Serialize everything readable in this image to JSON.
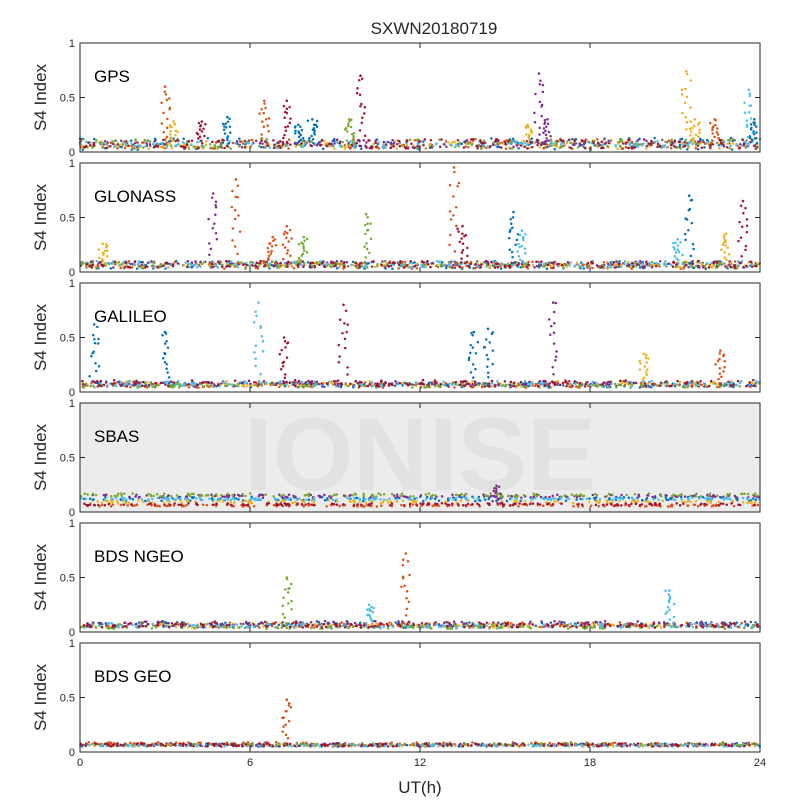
{
  "chart_data": {
    "type": "scatter",
    "title": "SXWN20180719",
    "xlabel": "UT(h)",
    "ylabel": "S4 Index",
    "xlim": [
      0,
      24
    ],
    "ylim": [
      0,
      1
    ],
    "x_ticks": [
      "0",
      "6",
      "12",
      "18",
      "24"
    ],
    "y_ticks": [
      "0",
      "0.5",
      "1"
    ],
    "grid": false,
    "watermark": "IONISE",
    "series_colors": [
      "#0072bd",
      "#d95319",
      "#edb120",
      "#7e2f8e",
      "#77ac30",
      "#4dbeee",
      "#a2142f"
    ],
    "panels": [
      {
        "label": "GPS",
        "baseline_bands": [
          [
            0.02,
            0.13
          ],
          [
            0.03,
            0.12
          ],
          [
            0.03,
            0.1
          ],
          [
            0.04,
            0.11
          ],
          [
            0.03,
            0.12
          ],
          [
            0.04,
            0.1
          ],
          [
            0.03,
            0.12
          ]
        ],
        "spikes": [
          {
            "t": 3.0,
            "peak": 0.6,
            "color": 1
          },
          {
            "t": 3.3,
            "peak": 0.28,
            "color": 2
          },
          {
            "t": 4.3,
            "peak": 0.28,
            "color": 6
          },
          {
            "t": 5.2,
            "peak": 0.32,
            "color": 0
          },
          {
            "t": 6.5,
            "peak": 0.47,
            "color": 1
          },
          {
            "t": 7.3,
            "peak": 0.47,
            "color": 6
          },
          {
            "t": 7.7,
            "peak": 0.25,
            "color": 0
          },
          {
            "t": 8.2,
            "peak": 0.3,
            "color": 0
          },
          {
            "t": 9.9,
            "peak": 0.7,
            "color": 6
          },
          {
            "t": 9.5,
            "peak": 0.3,
            "color": 4
          },
          {
            "t": 15.8,
            "peak": 0.25,
            "color": 2
          },
          {
            "t": 16.2,
            "peak": 0.72,
            "color": 3
          },
          {
            "t": 16.5,
            "peak": 0.3,
            "color": 3
          },
          {
            "t": 21.4,
            "peak": 0.74,
            "color": 2
          },
          {
            "t": 21.7,
            "peak": 0.3,
            "color": 2
          },
          {
            "t": 22.4,
            "peak": 0.3,
            "color": 1
          },
          {
            "t": 23.6,
            "peak": 0.57,
            "color": 5
          },
          {
            "t": 23.8,
            "peak": 0.3,
            "color": 0
          }
        ]
      },
      {
        "label": "GLONASS",
        "baseline_bands": [
          [
            0.03,
            0.1
          ],
          [
            0.03,
            0.1
          ],
          [
            0.04,
            0.09
          ],
          [
            0.04,
            0.1
          ],
          [
            0.04,
            0.09
          ],
          [
            0.04,
            0.1
          ],
          [
            0.04,
            0.1
          ]
        ],
        "spikes": [
          {
            "t": 0.8,
            "peak": 0.26,
            "color": 2
          },
          {
            "t": 4.7,
            "peak": 0.72,
            "color": 3
          },
          {
            "t": 5.5,
            "peak": 0.85,
            "color": 1
          },
          {
            "t": 6.8,
            "peak": 0.32,
            "color": 1
          },
          {
            "t": 7.3,
            "peak": 0.42,
            "color": 1
          },
          {
            "t": 7.9,
            "peak": 0.32,
            "color": 4
          },
          {
            "t": 10.1,
            "peak": 0.53,
            "color": 4
          },
          {
            "t": 13.2,
            "peak": 0.96,
            "color": 1
          },
          {
            "t": 13.5,
            "peak": 0.42,
            "color": 6
          },
          {
            "t": 15.3,
            "peak": 0.55,
            "color": 0
          },
          {
            "t": 15.6,
            "peak": 0.38,
            "color": 5
          },
          {
            "t": 21.5,
            "peak": 0.7,
            "color": 0
          },
          {
            "t": 21.1,
            "peak": 0.3,
            "color": 5
          },
          {
            "t": 22.8,
            "peak": 0.35,
            "color": 2
          },
          {
            "t": 23.4,
            "peak": 0.65,
            "color": 6
          }
        ]
      },
      {
        "label": "GALILEO",
        "baseline_bands": [
          [
            0.04,
            0.09
          ],
          [
            0.04,
            0.09
          ],
          [
            0.05,
            0.1
          ],
          [
            0.05,
            0.1
          ],
          [
            0.04,
            0.08
          ],
          [
            0.05,
            0.1
          ],
          [
            0.05,
            0.11
          ]
        ],
        "spikes": [
          {
            "t": 0.5,
            "peak": 0.62,
            "color": 0
          },
          {
            "t": 3.0,
            "peak": 0.55,
            "color": 0
          },
          {
            "t": 6.3,
            "peak": 0.82,
            "color": 5
          },
          {
            "t": 7.2,
            "peak": 0.5,
            "color": 6
          },
          {
            "t": 9.3,
            "peak": 0.8,
            "color": 6
          },
          {
            "t": 13.9,
            "peak": 0.55,
            "color": 0
          },
          {
            "t": 14.4,
            "peak": 0.58,
            "color": 0
          },
          {
            "t": 16.7,
            "peak": 0.82,
            "color": 3
          },
          {
            "t": 19.9,
            "peak": 0.35,
            "color": 2
          },
          {
            "t": 22.6,
            "peak": 0.38,
            "color": 1
          }
        ]
      },
      {
        "label": "SBAS",
        "baseline_bands": [
          [
            0.1,
            0.14
          ],
          [
            0.05,
            0.07
          ],
          [
            0.08,
            0.11
          ],
          [
            0.13,
            0.16
          ],
          [
            0.14,
            0.17
          ],
          [
            0.11,
            0.13
          ],
          [
            0.06,
            0.08
          ]
        ],
        "spikes": [
          {
            "t": 14.7,
            "peak": 0.24,
            "color": 3
          }
        ]
      },
      {
        "label": "BDS NGEO",
        "baseline_bands": [
          [
            0.04,
            0.09
          ],
          [
            0.04,
            0.09
          ],
          [
            0.04,
            0.08
          ],
          [
            0.05,
            0.1
          ],
          [
            0.03,
            0.07
          ],
          [
            0.04,
            0.08
          ],
          [
            0.04,
            0.08
          ]
        ],
        "spikes": [
          {
            "t": 7.3,
            "peak": 0.5,
            "color": 4
          },
          {
            "t": 10.2,
            "peak": 0.25,
            "color": 5
          },
          {
            "t": 11.5,
            "peak": 0.72,
            "color": 1
          },
          {
            "t": 20.8,
            "peak": 0.38,
            "color": 5
          }
        ]
      },
      {
        "label": "BDS GEO",
        "baseline_bands": [
          [
            0.05,
            0.08
          ],
          [
            0.06,
            0.09
          ],
          [
            0.05,
            0.07
          ],
          [
            0.05,
            0.08
          ],
          [
            0.06,
            0.08
          ],
          [
            0.05,
            0.07
          ],
          [
            0.05,
            0.08
          ]
        ],
        "spikes": [
          {
            "t": 7.3,
            "peak": 0.48,
            "color": 1
          }
        ]
      }
    ]
  }
}
